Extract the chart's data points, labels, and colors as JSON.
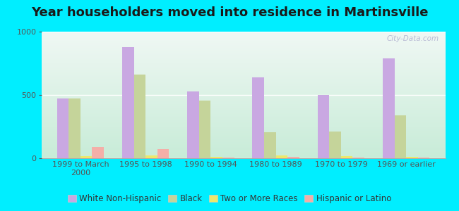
{
  "title": "Year householders moved into residence in Martinsville",
  "categories": [
    "1999 to March\n2000",
    "1995 to 1998",
    "1990 to 1994",
    "1980 to 1989",
    "1970 to 1979",
    "1969 or earlier"
  ],
  "series": {
    "White Non-Hispanic": [
      470,
      880,
      530,
      640,
      500,
      790
    ],
    "Black": [
      475,
      660,
      455,
      205,
      210,
      340
    ],
    "Two or More Races": [
      15,
      25,
      10,
      25,
      15,
      10
    ],
    "Hispanic or Latino": [
      90,
      70,
      8,
      10,
      8,
      8
    ]
  },
  "colors": {
    "White Non-Hispanic": "#c9a8e2",
    "Black": "#c5d49a",
    "Two or More Races": "#ede86a",
    "Hispanic or Latino": "#f4afa8"
  },
  "ylim": [
    0,
    1000
  ],
  "yticks": [
    0,
    500,
    1000
  ],
  "cyan_bg": "#00eeff",
  "grad_top": "#f0f8f4",
  "grad_bottom": "#c8ecd8",
  "title_fontsize": 13,
  "tick_fontsize": 8,
  "legend_fontsize": 8.5,
  "bar_width": 0.18,
  "watermark": "City-Data.com"
}
